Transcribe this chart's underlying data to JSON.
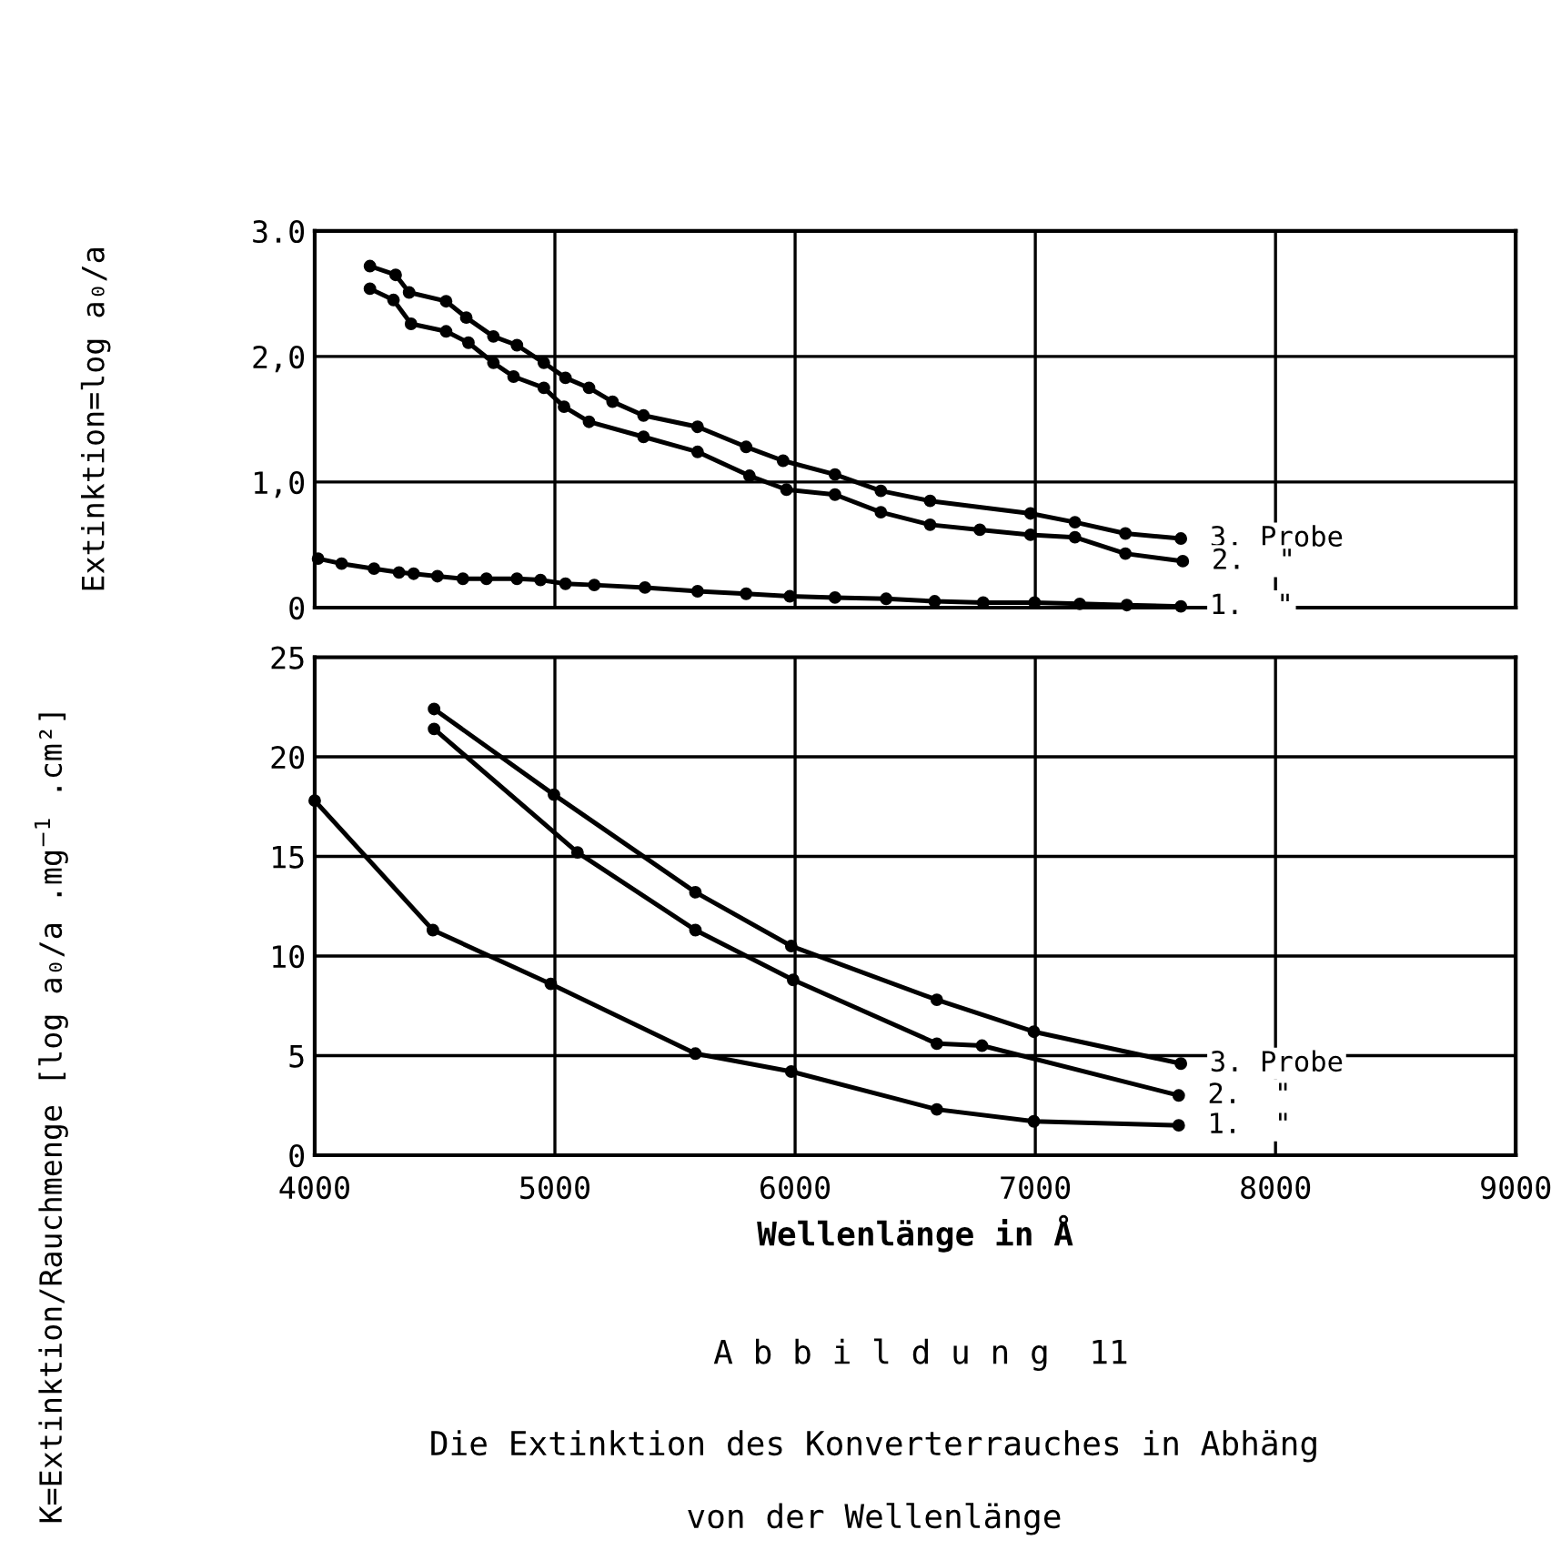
{
  "chart_data": [
    {
      "type": "line",
      "ylabel": "Extinktion=log a₀/a",
      "xlim": [
        4000,
        9000
      ],
      "xticks": [
        4000,
        5000,
        6000,
        7000,
        8000,
        9000
      ],
      "ylim": [
        0,
        3
      ],
      "yticks": [
        0,
        {
          "value": 1,
          "label": "1,0"
        },
        {
          "value": 2,
          "label": "2,0"
        },
        {
          "value": 3,
          "label": "3.0"
        }
      ],
      "grid": true,
      "marker": "circle",
      "line_style": "solid",
      "tick_labels": "y",
      "series": [
        {
          "name": "3. Probe",
          "color": "#000000",
          "x": [
            4230,
            4337,
            4393,
            4547,
            4631,
            4744,
            4842,
            4954,
            5044,
            5142,
            5240,
            5369,
            5594,
            5796,
            5950,
            6166,
            6357,
            6562,
            6980,
            7165,
            7375,
            7606
          ],
          "values": [
            2.72,
            2.65,
            2.51,
            2.44,
            2.31,
            2.16,
            2.09,
            1.95,
            1.83,
            1.75,
            1.64,
            1.53,
            1.44,
            1.28,
            1.17,
            1.06,
            0.93,
            0.85,
            0.75,
            0.68,
            0.59,
            0.55
          ]
        },
        {
          "name": "2.  \"",
          "color": "#000000",
          "x": [
            4230,
            4328,
            4401,
            4547,
            4640,
            4744,
            4828,
            4954,
            5038,
            5142,
            5369,
            5594,
            5810,
            5964,
            6166,
            6357,
            6562,
            6769,
            6980,
            7165,
            7375,
            7614
          ],
          "values": [
            2.54,
            2.45,
            2.26,
            2.2,
            2.11,
            1.95,
            1.84,
            1.75,
            1.6,
            1.48,
            1.36,
            1.24,
            1.05,
            0.94,
            0.9,
            0.76,
            0.66,
            0.62,
            0.58,
            0.56,
            0.43,
            0.37
          ]
        },
        {
          "name": "1.  \"",
          "color": "#000000",
          "x": [
            4014,
            4112,
            4247,
            4351,
            4412,
            4511,
            4617,
            4715,
            4842,
            4940,
            5044,
            5164,
            5375,
            5594,
            5796,
            5978,
            6166,
            6379,
            6581,
            6783,
            6997,
            7185,
            7381,
            7606
          ],
          "values": [
            0.39,
            0.35,
            0.31,
            0.28,
            0.27,
            0.25,
            0.23,
            0.23,
            0.23,
            0.22,
            0.19,
            0.18,
            0.16,
            0.13,
            0.11,
            0.09,
            0.08,
            0.07,
            0.05,
            0.04,
            0.04,
            0.03,
            0.02,
            0.01
          ]
        }
      ]
    },
    {
      "type": "line",
      "ylabel": "K=Extinktion/Rauchmenge [log a₀/a .mg$^{−1}$ .cm²]",
      "xlabel": "Wellenlänge in Å",
      "xlim": [
        4000,
        9000
      ],
      "xticks": [
        4000,
        5000,
        6000,
        7000,
        8000,
        9000
      ],
      "ylim": [
        0,
        25
      ],
      "yticks": [
        0,
        5,
        10,
        15,
        20,
        25
      ],
      "grid": true,
      "marker": "circle",
      "line_style": "solid",
      "series": [
        {
          "name": "3. Probe",
          "color": "#000000",
          "x": [
            4497,
            4996,
            5585,
            5984,
            6590,
            6994,
            7606
          ],
          "values": [
            22.4,
            18.1,
            13.2,
            10.5,
            7.8,
            6.2,
            4.6
          ]
        },
        {
          "name": "2.  \"",
          "color": "#000000",
          "x": [
            4497,
            5094,
            5585,
            5992,
            6590,
            6778,
            7597
          ],
          "values": [
            21.4,
            15.2,
            11.3,
            8.8,
            5.6,
            5.5,
            3.0
          ]
        },
        {
          "name": "1.  \"",
          "color": "#000000",
          "x": [
            4000,
            4492,
            4983,
            5585,
            5984,
            6590,
            6994,
            7597
          ],
          "values": [
            17.8,
            11.3,
            8.6,
            5.1,
            4.2,
            2.3,
            1.7,
            1.5
          ]
        }
      ],
      "annotations": [
        "A b b i l d u n g  11",
        "Die Extinktion des Konverterrauches in Abhäng",
        "von der Wellenlänge"
      ]
    }
  ]
}
